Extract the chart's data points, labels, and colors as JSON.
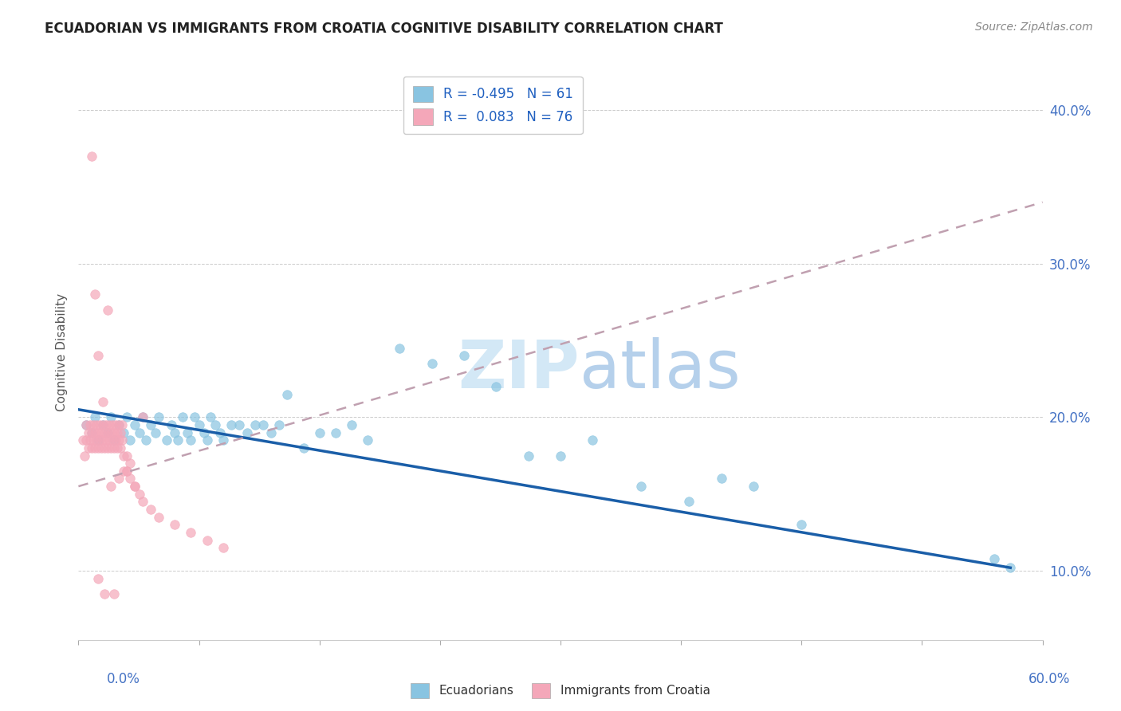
{
  "title": "ECUADORIAN VS IMMIGRANTS FROM CROATIA COGNITIVE DISABILITY CORRELATION CHART",
  "source": "Source: ZipAtlas.com",
  "ylabel": "Cognitive Disability",
  "x_min": 0.0,
  "x_max": 0.6,
  "y_min": 0.055,
  "y_max": 0.43,
  "yticks": [
    0.1,
    0.2,
    0.3,
    0.4
  ],
  "ytick_labels": [
    "10.0%",
    "20.0%",
    "30.0%",
    "40.0%"
  ],
  "r_blue": -0.495,
  "n_blue": 61,
  "r_pink": 0.083,
  "n_pink": 76,
  "color_blue": "#89c4e1",
  "color_pink": "#f4a7b9",
  "color_blue_line": "#1a5ea8",
  "legend_label_blue": "Ecuadorians",
  "legend_label_pink": "Immigrants from Croatia",
  "blue_line_x0": 0.0,
  "blue_line_y0": 0.205,
  "blue_line_x1": 0.58,
  "blue_line_y1": 0.102,
  "pink_line_x0": 0.0,
  "pink_line_y0": 0.155,
  "pink_line_x1": 0.6,
  "pink_line_y1": 0.34,
  "blue_scatter_x": [
    0.005,
    0.008,
    0.01,
    0.012,
    0.015,
    0.018,
    0.02,
    0.022,
    0.025,
    0.028,
    0.03,
    0.032,
    0.035,
    0.038,
    0.04,
    0.042,
    0.045,
    0.048,
    0.05,
    0.055,
    0.058,
    0.06,
    0.062,
    0.065,
    0.068,
    0.07,
    0.072,
    0.075,
    0.078,
    0.08,
    0.082,
    0.085,
    0.088,
    0.09,
    0.095,
    0.1,
    0.105,
    0.11,
    0.115,
    0.12,
    0.125,
    0.13,
    0.14,
    0.15,
    0.16,
    0.17,
    0.18,
    0.2,
    0.22,
    0.24,
    0.26,
    0.28,
    0.3,
    0.32,
    0.35,
    0.38,
    0.4,
    0.42,
    0.45,
    0.58,
    0.57
  ],
  "blue_scatter_y": [
    0.195,
    0.19,
    0.2,
    0.185,
    0.195,
    0.19,
    0.2,
    0.185,
    0.195,
    0.19,
    0.2,
    0.185,
    0.195,
    0.19,
    0.2,
    0.185,
    0.195,
    0.19,
    0.2,
    0.185,
    0.195,
    0.19,
    0.185,
    0.2,
    0.19,
    0.185,
    0.2,
    0.195,
    0.19,
    0.185,
    0.2,
    0.195,
    0.19,
    0.185,
    0.195,
    0.195,
    0.19,
    0.195,
    0.195,
    0.19,
    0.195,
    0.215,
    0.18,
    0.19,
    0.19,
    0.195,
    0.185,
    0.245,
    0.235,
    0.24,
    0.22,
    0.175,
    0.175,
    0.185,
    0.155,
    0.145,
    0.16,
    0.155,
    0.13,
    0.102,
    0.108
  ],
  "pink_scatter_x": [
    0.003,
    0.004,
    0.005,
    0.005,
    0.006,
    0.006,
    0.007,
    0.007,
    0.008,
    0.008,
    0.009,
    0.009,
    0.01,
    0.01,
    0.011,
    0.011,
    0.012,
    0.012,
    0.013,
    0.013,
    0.014,
    0.014,
    0.015,
    0.015,
    0.016,
    0.016,
    0.017,
    0.017,
    0.018,
    0.018,
    0.019,
    0.019,
    0.02,
    0.02,
    0.021,
    0.021,
    0.022,
    0.022,
    0.023,
    0.023,
    0.024,
    0.024,
    0.025,
    0.025,
    0.026,
    0.026,
    0.027,
    0.027,
    0.028,
    0.028,
    0.03,
    0.03,
    0.032,
    0.032,
    0.035,
    0.038,
    0.04,
    0.045,
    0.05,
    0.06,
    0.07,
    0.08,
    0.09,
    0.008,
    0.01,
    0.012,
    0.015,
    0.018,
    0.02,
    0.025,
    0.03,
    0.035,
    0.04,
    0.012,
    0.016,
    0.022
  ],
  "pink_scatter_y": [
    0.185,
    0.175,
    0.195,
    0.185,
    0.19,
    0.18,
    0.195,
    0.185,
    0.19,
    0.18,
    0.195,
    0.185,
    0.19,
    0.18,
    0.195,
    0.185,
    0.19,
    0.18,
    0.195,
    0.185,
    0.19,
    0.18,
    0.195,
    0.185,
    0.19,
    0.18,
    0.195,
    0.185,
    0.19,
    0.18,
    0.195,
    0.185,
    0.19,
    0.18,
    0.195,
    0.185,
    0.19,
    0.18,
    0.195,
    0.185,
    0.19,
    0.18,
    0.195,
    0.185,
    0.19,
    0.18,
    0.195,
    0.185,
    0.165,
    0.175,
    0.175,
    0.165,
    0.17,
    0.16,
    0.155,
    0.15,
    0.145,
    0.14,
    0.135,
    0.13,
    0.125,
    0.12,
    0.115,
    0.37,
    0.28,
    0.24,
    0.21,
    0.27,
    0.155,
    0.16,
    0.165,
    0.155,
    0.2,
    0.095,
    0.085,
    0.085
  ]
}
